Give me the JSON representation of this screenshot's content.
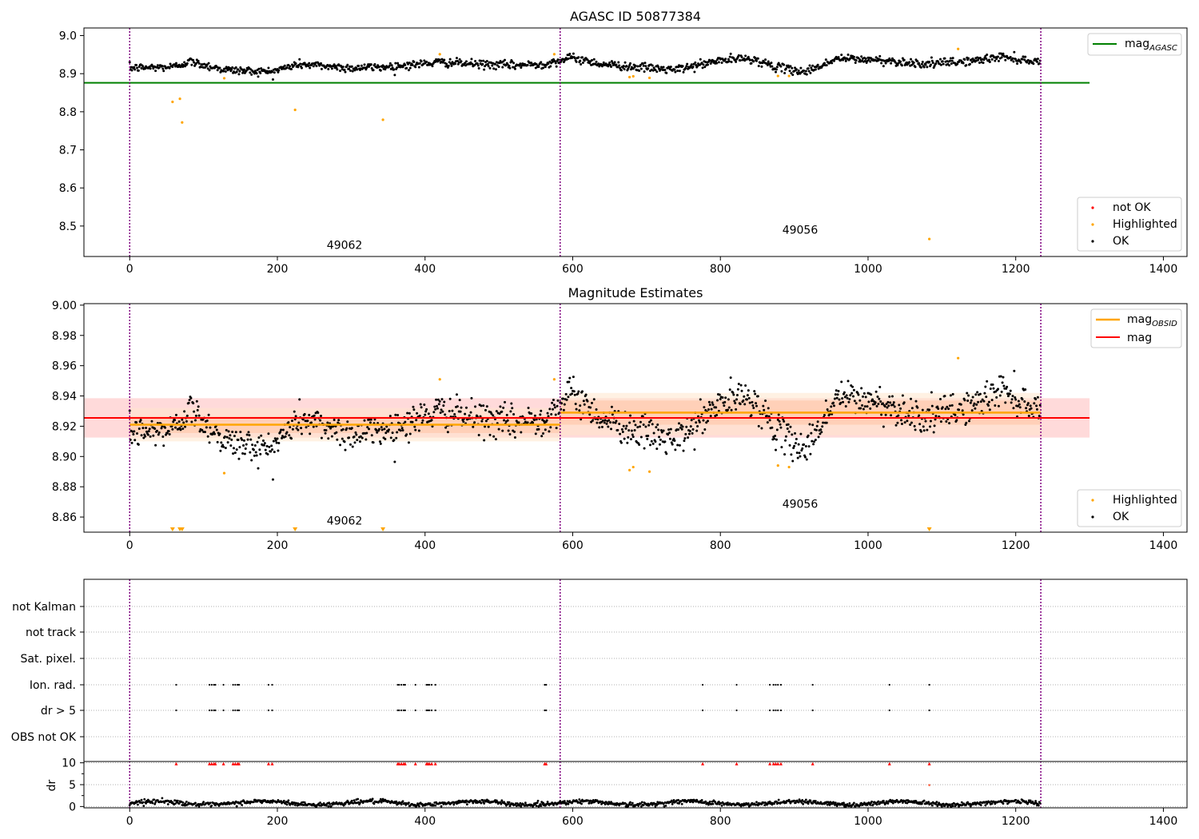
{
  "chart_data": [
    {
      "type": "scatter",
      "title": "AGASC ID 50877384",
      "xlim": [
        -62,
        1432
      ],
      "ylim": [
        8.42,
        9.02
      ],
      "x_ticks": [
        0,
        200,
        400,
        600,
        800,
        1000,
        1200,
        1400
      ],
      "y_ticks": [
        8.5,
        8.6,
        8.7,
        8.8,
        8.9,
        9.0
      ],
      "y_tick_labels": [
        "8.5",
        "8.6",
        "8.7",
        "8.8",
        "8.9",
        "9.0"
      ],
      "x_tick_labels": [
        "0",
        "200",
        "400",
        "600",
        "800",
        "1000",
        "1200",
        "1400"
      ],
      "segment_boundaries": [
        0,
        583,
        1234
      ],
      "segment_labels": [
        {
          "text": "49062",
          "x": 291,
          "y": 8.44
        },
        {
          "text": "49056",
          "x": 908,
          "y": 8.48
        }
      ],
      "mag_agasc": {
        "value": 8.876,
        "x_range": [
          -62,
          1300
        ]
      },
      "ok_series": {
        "n": 1234,
        "baseline": 8.92
      },
      "highlighted_points": [
        {
          "x": 58,
          "y": 8.826
        },
        {
          "x": 68,
          "y": 8.834
        },
        {
          "x": 71,
          "y": 8.772
        },
        {
          "x": 128,
          "y": 8.888
        },
        {
          "x": 224,
          "y": 8.805
        },
        {
          "x": 343,
          "y": 8.779
        },
        {
          "x": 420,
          "y": 8.951
        },
        {
          "x": 575,
          "y": 8.951
        },
        {
          "x": 677,
          "y": 8.891
        },
        {
          "x": 682,
          "y": 8.893
        },
        {
          "x": 704,
          "y": 8.889
        },
        {
          "x": 878,
          "y": 8.894
        },
        {
          "x": 893,
          "y": 8.894
        },
        {
          "x": 1083,
          "y": 8.466
        },
        {
          "x": 1122,
          "y": 8.965
        }
      ],
      "legends": [
        {
          "position": "upper right",
          "items": [
            {
              "label": "mag",
              "sub": "AGASC",
              "color": "#008000",
              "kind": "line"
            }
          ]
        },
        {
          "position": "lower right",
          "items": [
            {
              "label": "not OK",
              "color": "#ff0000",
              "kind": "dot"
            },
            {
              "label": "Highlighted",
              "color": "#ffa500",
              "kind": "dot"
            },
            {
              "label": "OK",
              "color": "#000000",
              "kind": "dot"
            }
          ]
        }
      ]
    },
    {
      "type": "scatter",
      "title": "Magnitude Estimates",
      "xlim": [
        -62,
        1432
      ],
      "ylim": [
        8.85,
        9.001
      ],
      "x_ticks": [
        0,
        200,
        400,
        600,
        800,
        1000,
        1200,
        1400
      ],
      "x_tick_labels": [
        "0",
        "200",
        "400",
        "600",
        "800",
        "1000",
        "1200",
        "1400"
      ],
      "y_ticks": [
        8.86,
        8.88,
        8.9,
        8.92,
        8.94,
        8.96,
        8.98,
        9.0
      ],
      "y_tick_labels": [
        "8.86",
        "8.88",
        "8.90",
        "8.92",
        "8.94",
        "8.96",
        "8.98",
        "9.00"
      ],
      "segment_boundaries": [
        0,
        583,
        1234
      ],
      "segment_labels": [
        {
          "text": "49062",
          "x": 291,
          "y": 8.855
        },
        {
          "text": "49056",
          "x": 908,
          "y": 8.866
        }
      ],
      "mag": {
        "value": 8.9255,
        "band": [
          8.9125,
          8.9385
        ],
        "x_range": [
          -62,
          1300
        ]
      },
      "mag_obsid": [
        {
          "value": 8.921,
          "band_outer": [
            8.91,
            8.932
          ],
          "band_inner": [
            8.9155,
            8.9265
          ],
          "x_range": [
            0,
            583
          ]
        },
        {
          "value": 8.929,
          "band_outer": [
            8.914,
            8.942
          ],
          "band_inner": [
            8.921,
            8.937
          ],
          "x_range": [
            583,
            1234
          ]
        }
      ],
      "ok_series": {
        "n": 1234
      },
      "highlighted_points": [
        {
          "x": 128,
          "y": 8.889
        },
        {
          "x": 420,
          "y": 8.951
        },
        {
          "x": 575,
          "y": 8.951
        },
        {
          "x": 677,
          "y": 8.891
        },
        {
          "x": 682,
          "y": 8.893
        },
        {
          "x": 704,
          "y": 8.89
        },
        {
          "x": 878,
          "y": 8.894
        },
        {
          "x": 893,
          "y": 8.893
        },
        {
          "x": 1122,
          "y": 8.965
        }
      ],
      "out_of_range_markers_x": [
        58,
        68,
        71,
        224,
        343,
        1083
      ],
      "legends": [
        {
          "position": "upper right",
          "items": [
            {
              "label": "mag",
              "sub": "OBSID",
              "color": "#ffa500",
              "kind": "line"
            },
            {
              "label": "mag",
              "sub": "",
              "color": "#ff0000",
              "kind": "line"
            }
          ]
        },
        {
          "position": "lower right",
          "items": [
            {
              "label": "Highlighted",
              "color": "#ffa500",
              "kind": "dot"
            },
            {
              "label": "OK",
              "color": "#000000",
              "kind": "dot"
            }
          ]
        }
      ]
    },
    {
      "type": "scatter",
      "title": "",
      "xlim": [
        -62,
        1432
      ],
      "x_ticks": [
        0,
        200,
        400,
        600,
        800,
        1000,
        1200,
        1400
      ],
      "x_tick_labels": [
        "0",
        "200",
        "400",
        "600",
        "800",
        "1000",
        "1200",
        "1400"
      ],
      "segment_boundaries": [
        0,
        583,
        1234
      ],
      "flag_rows": [
        "not Kalman",
        "not track",
        "Sat. pixel.",
        "Ion. rad.",
        "dr > 5",
        "OBS not OK"
      ],
      "flagged_x": [
        63,
        108,
        111,
        114,
        116,
        127,
        140,
        143,
        146,
        148,
        188,
        193,
        363,
        365,
        368,
        371,
        373,
        387,
        402,
        404,
        406,
        409,
        414,
        562,
        564,
        776,
        822,
        867,
        872,
        875,
        878,
        882,
        925,
        1029,
        1083
      ],
      "dr_ylabel": "dr",
      "dr_ticks": [
        0,
        5,
        10
      ],
      "dr_tick_labels": [
        "0",
        "5",
        "10"
      ],
      "dr_ylim": [
        -0.3,
        10.3
      ],
      "dr_typical": 0.8,
      "dr_outlier": {
        "x": 1083,
        "y": 4.9
      }
    }
  ],
  "colors": {
    "ok": "#000000",
    "highlighted": "#ffa500",
    "not_ok": "#ff0000",
    "segment_line": "#800080",
    "mag_agasc": "#008000",
    "mag_obsid": "#ffa500",
    "mag": "#ff0000",
    "mag_band": "#ffd6d6",
    "obsid_band": "#ffe6cc",
    "grid": "#b0b0b0"
  }
}
